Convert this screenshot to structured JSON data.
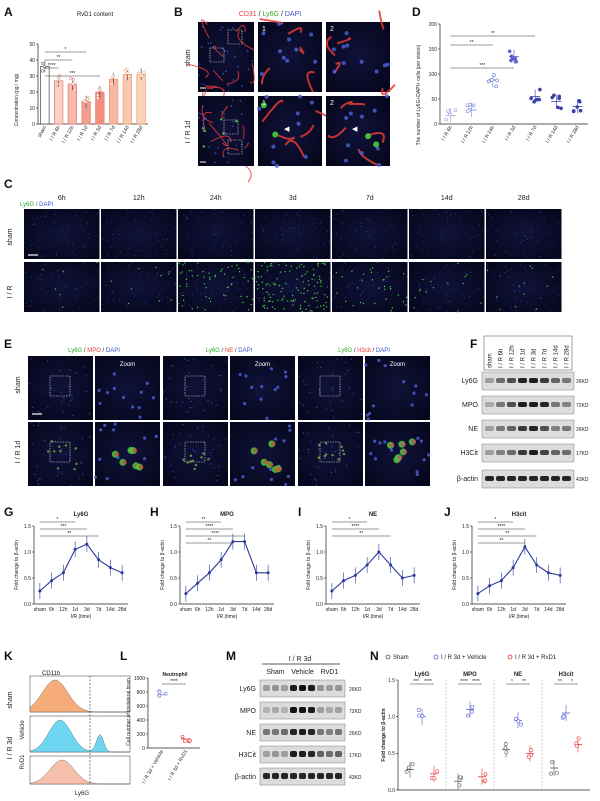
{
  "colors": {
    "red": "#e53935",
    "green": "#43d13f",
    "blue": "#4b63d8",
    "purple": "#5a3fb8",
    "navy": "#2a3a9c",
    "orange": "#f4a46a",
    "cyan": "#5fd2f0",
    "salmon": "#f6b9a0"
  },
  "panels": {
    "A": "A",
    "B": "B",
    "C": "C",
    "D": "D",
    "E": "E",
    "F": "F",
    "G": "G",
    "H": "H",
    "I": "I",
    "J": "J",
    "K": "K",
    "L": "L",
    "M": "M",
    "N": "N"
  },
  "A": {
    "title": "RvD1 content",
    "ylabel": "Concentration (pg / mg)",
    "categories": [
      "sham",
      "I / R 6h",
      "I / R 12h",
      "I / R 1d",
      "I / R 3d",
      "I / R 7d",
      "I / R 14d",
      "I / R 28d"
    ],
    "values": [
      36,
      27,
      25,
      14,
      20,
      28,
      31,
      31
    ],
    "ymax": 50,
    "yticks": [
      "0",
      "10",
      "20",
      "30",
      "40",
      "50"
    ],
    "sig": [
      "*",
      "**",
      "****",
      "***"
    ]
  },
  "B": {
    "stain": {
      "a": "CD31",
      "b": " / ",
      "c": "Ly6G",
      "d": " / ",
      "e": "DAPI"
    },
    "rows": [
      "sham",
      "I / R 1d"
    ],
    "zoom": [
      "1",
      "2",
      "1",
      "2"
    ]
  },
  "C": {
    "stain": {
      "a": "Ly6G",
      "b": " / DAPI"
    },
    "cols": [
      "6h",
      "12h",
      "24h",
      "3d",
      "7d",
      "14d",
      "28d"
    ],
    "rows": [
      "sham",
      "I / R"
    ]
  },
  "D": {
    "ylabel": "The number of Ly6G+DAPI+ cells (per vision)",
    "categories": [
      "I / R 6h",
      "I / R 12h",
      "I / R 24h",
      "I / R 3d",
      "I / R 7d",
      "I / R 14d",
      "I / R 28d"
    ],
    "values": [
      17,
      28,
      88,
      135,
      55,
      45,
      35
    ],
    "ymax": 200,
    "yticks": [
      "0",
      "50",
      "100",
      "150",
      "200"
    ],
    "sig": [
      "***",
      "**",
      "**"
    ]
  },
  "E": {
    "stains": [
      {
        "a": "Ly6G",
        "b": " / ",
        "c": "MPO",
        "d": " / ",
        "e": "DAPI"
      },
      {
        "a": "Ly6G",
        "b": " / ",
        "c": "NE",
        "d": " / ",
        "e": "DAPI"
      },
      {
        "a": "Ly6G",
        "b": " / ",
        "c": "H3cit",
        "d": " / ",
        "e": "DAPI"
      }
    ],
    "zoom": "Zoom",
    "rows": [
      "sham",
      "I / R 1d"
    ]
  },
  "F": {
    "lanes": [
      "sham",
      "I / R 6h",
      "I / R 12h",
      "I / R 1d",
      "I / R 3d",
      "I / R 7d",
      "I / R 14d",
      "I / R 28d"
    ],
    "bands": [
      "Ly6G",
      "MPO",
      "NE",
      "H3Cit",
      "β-actin"
    ],
    "kd": [
      "26KD",
      "72KD",
      "26KD",
      "17KD",
      "43KD"
    ]
  },
  "lines": [
    {
      "title": "Ly6G",
      "values": [
        0.25,
        0.45,
        0.6,
        1.05,
        1.15,
        0.85,
        0.7,
        0.6
      ],
      "sig": [
        "*",
        "***",
        "**"
      ]
    },
    {
      "title": "MPO",
      "values": [
        0.2,
        0.4,
        0.6,
        0.85,
        1.2,
        1.2,
        0.6,
        0.6
      ],
      "sig": [
        "**",
        "****",
        "****",
        "**"
      ]
    },
    {
      "title": "NE",
      "values": [
        0.25,
        0.45,
        0.55,
        0.75,
        1.0,
        0.75,
        0.5,
        0.55
      ],
      "sig": [
        "*",
        "****",
        "**"
      ]
    },
    {
      "title": "H3cit",
      "values": [
        0.2,
        0.35,
        0.45,
        0.7,
        1.1,
        0.75,
        0.6,
        0.55
      ],
      "sig": [
        "*",
        "****",
        "**",
        "**"
      ]
    }
  ],
  "line_common": {
    "ylabel": "Fold change to β-actin",
    "xlabel": "I/R (time)",
    "categories": [
      "sham",
      "6h",
      "12h",
      "1d",
      "3d",
      "7d",
      "14d",
      "28d"
    ],
    "yticks": [
      "0.0",
      "0.5",
      "1.0",
      "1.5"
    ]
  },
  "K": {
    "marker": "CD11b",
    "xlabel": "Ly6G",
    "rows": [
      "sham",
      "Vehicle",
      "RvD1"
    ],
    "group": "I / R 3d"
  },
  "L": {
    "title": "Neutrophil",
    "ylabel": "Cell number of ipsilateral brain",
    "categories": [
      "I / R 3d + Vehicle",
      "I / R 3d + RvD1"
    ],
    "values": [
      760,
      130
    ],
    "yticks": [
      "0",
      "200",
      "400",
      "600",
      "800",
      "1000"
    ],
    "sig": "****"
  },
  "M": {
    "header": "I / R 3d",
    "groups": [
      "Sham",
      "Vehicle",
      "RvD1"
    ],
    "bands": [
      "Ly6G",
      "MPO",
      "NE",
      "H3Cit",
      "β-actin"
    ],
    "kd": [
      "26KD",
      "72KD",
      "26KD",
      "17KD",
      "43KD"
    ]
  },
  "N": {
    "legend": [
      "Sham",
      "I / R 3d + Vehicle",
      "I / R 3d + RvD1"
    ],
    "ylabel": "Fold change to β-actin",
    "yticks": [
      "0.0",
      "0.5",
      "1.0",
      "1.5"
    ],
    "groups": [
      {
        "name": "Ly6G",
        "values": [
          0.28,
          1.0,
          0.22
        ],
        "sig": [
          "***",
          "****"
        ]
      },
      {
        "name": "MPO",
        "values": [
          0.12,
          1.1,
          0.18
        ],
        "sig": [
          "****",
          "****"
        ]
      },
      {
        "name": "NE",
        "values": [
          0.55,
          0.95,
          0.5
        ],
        "sig": [
          "*",
          "**"
        ]
      },
      {
        "name": "H3cit",
        "values": [
          0.3,
          1.05,
          0.62
        ],
        "sig": [
          "**",
          "*"
        ]
      }
    ]
  },
  "chart_data": [
    {
      "type": "bar",
      "panel": "A",
      "title": "RvD1 content",
      "ylabel": "Concentration (pg / mg)",
      "categories": [
        "sham",
        "I / R 6h",
        "I / R 12h",
        "I / R 1d",
        "I / R 3d",
        "I / R 7d",
        "I / R 14d",
        "I / R 28d"
      ],
      "values": [
        36,
        27,
        25,
        14,
        20,
        28,
        31,
        31
      ],
      "ylim": [
        0,
        50
      ]
    },
    {
      "type": "scatter",
      "panel": "D",
      "ylabel": "The number of Ly6G+DAPI+ cells (per vision)",
      "categories": [
        "I / R 6h",
        "I / R 12h",
        "I / R 24h",
        "I / R 3d",
        "I / R 7d",
        "I / R 14d",
        "I / R 28d"
      ],
      "values": [
        17,
        28,
        88,
        135,
        55,
        45,
        35
      ],
      "ylim": [
        0,
        200
      ]
    },
    {
      "type": "line",
      "panel": "G",
      "title": "Ly6G",
      "categories": [
        "sham",
        "6h",
        "12h",
        "1d",
        "3d",
        "7d",
        "14d",
        "28d"
      ],
      "values": [
        0.25,
        0.45,
        0.6,
        1.05,
        1.15,
        0.85,
        0.7,
        0.6
      ],
      "ylim": [
        0,
        1.5
      ]
    },
    {
      "type": "line",
      "panel": "H",
      "title": "MPO",
      "categories": [
        "sham",
        "6h",
        "12h",
        "1d",
        "3d",
        "7d",
        "14d",
        "28d"
      ],
      "values": [
        0.2,
        0.4,
        0.6,
        0.85,
        1.2,
        1.2,
        0.6,
        0.6
      ],
      "ylim": [
        0,
        1.5
      ]
    },
    {
      "type": "line",
      "panel": "I",
      "title": "NE",
      "categories": [
        "sham",
        "6h",
        "12h",
        "1d",
        "3d",
        "7d",
        "14d",
        "28d"
      ],
      "values": [
        0.25,
        0.45,
        0.55,
        0.75,
        1.0,
        0.75,
        0.5,
        0.55
      ],
      "ylim": [
        0,
        1.5
      ]
    },
    {
      "type": "line",
      "panel": "J",
      "title": "H3cit",
      "categories": [
        "sham",
        "6h",
        "12h",
        "1d",
        "3d",
        "7d",
        "14d",
        "28d"
      ],
      "values": [
        0.2,
        0.35,
        0.45,
        0.7,
        1.1,
        0.75,
        0.6,
        0.55
      ],
      "ylim": [
        0,
        1.5
      ]
    },
    {
      "type": "scatter",
      "panel": "L",
      "title": "Neutrophil",
      "categories": [
        "I / R 3d + Vehicle",
        "I / R 3d + RvD1"
      ],
      "values": [
        760,
        130
      ],
      "ylim": [
        0,
        1000
      ]
    },
    {
      "type": "scatter",
      "panel": "N",
      "categories": [
        "Ly6G",
        "MPO",
        "NE",
        "H3cit"
      ],
      "series": [
        {
          "name": "Sham",
          "values": [
            0.28,
            0.12,
            0.55,
            0.3
          ]
        },
        {
          "name": "I / R 3d + Vehicle",
          "values": [
            1.0,
            1.1,
            0.95,
            1.05
          ]
        },
        {
          "name": "I / R 3d + RvD1",
          "values": [
            0.22,
            0.18,
            0.5,
            0.62
          ]
        }
      ],
      "ylim": [
        0,
        1.5
      ]
    }
  ]
}
